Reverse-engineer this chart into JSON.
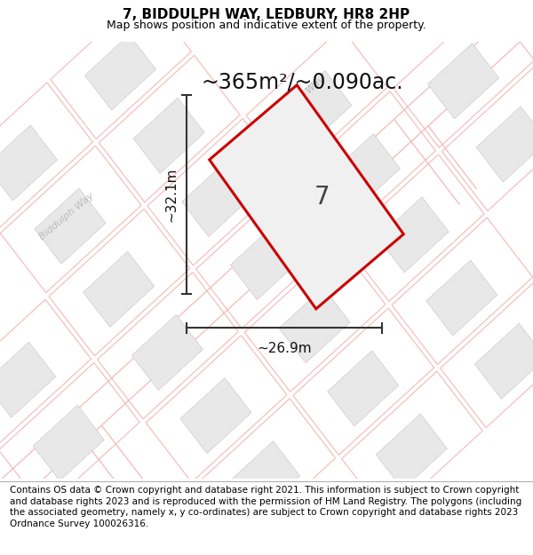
{
  "title": "7, BIDDULPH WAY, LEDBURY, HR8 2HP",
  "subtitle": "Map shows position and indicative extent of the property.",
  "area_label": "~365m²/~0.090ac.",
  "plot_number": "7",
  "dim_height": "~32.1m",
  "dim_width": "~26.9m",
  "footer": "Contains OS data © Crown copyright and database right 2021. This information is subject to Crown copyright and database rights 2023 and is reproduced with the permission of HM Land Registry. The polygons (including the associated geometry, namely x, y co-ordinates) are subject to Crown copyright and database rights 2023 Ordnance Survey 100026316.",
  "bg_color": "#ffffff",
  "road_outline_color": "#f5b8b8",
  "building_fill": "#e8e8e8",
  "building_edge": "#cccccc",
  "plot_fill": "#eeeeee",
  "plot_edge": "#cc0000",
  "road_label_color": "#b8b8b8",
  "dim_line_color": "#333333",
  "title_fontsize": 11,
  "subtitle_fontsize": 9,
  "area_fontsize": 17,
  "plot_num_fontsize": 20,
  "dim_fontsize": 11,
  "footer_fontsize": 7.5,
  "road_lw": 1.0,
  "plot_lw": 2.2
}
